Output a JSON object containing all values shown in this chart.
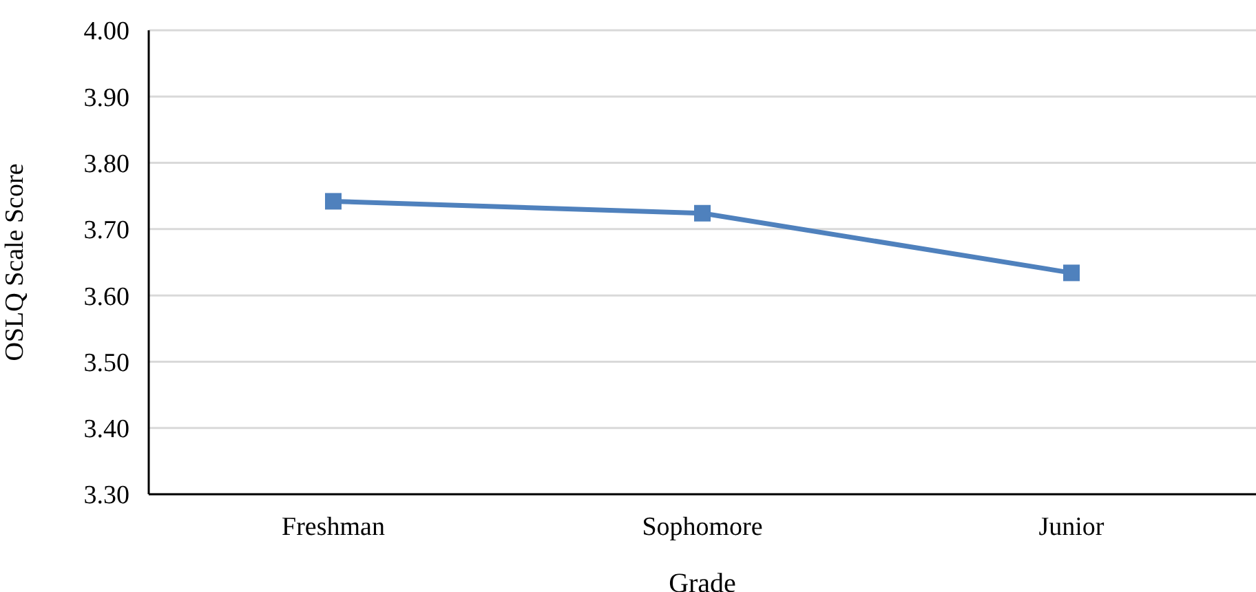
{
  "chart_data": {
    "type": "line",
    "xlabel": "Grade",
    "ylabel": "OSLQ Scale Score",
    "categories": [
      "Freshman",
      "Sophomore",
      "Junior"
    ],
    "series": [
      {
        "color": "#4f81bd",
        "values": [
          3.742,
          3.724,
          3.634
        ]
      }
    ],
    "ylim": [
      3.3,
      4.0
    ],
    "yticks": [
      {
        "value": 3.3,
        "label": "3.30"
      },
      {
        "value": 3.4,
        "label": "3.40"
      },
      {
        "value": 3.5,
        "label": "3.50"
      },
      {
        "value": 3.6,
        "label": "3.60"
      },
      {
        "value": 3.7,
        "label": "3.70"
      },
      {
        "value": 3.8,
        "label": "3.80"
      },
      {
        "value": 3.9,
        "label": "3.90"
      },
      {
        "value": 4.0,
        "label": "4.00"
      }
    ],
    "grid": "y",
    "marker": "square",
    "line_style": "solid"
  }
}
